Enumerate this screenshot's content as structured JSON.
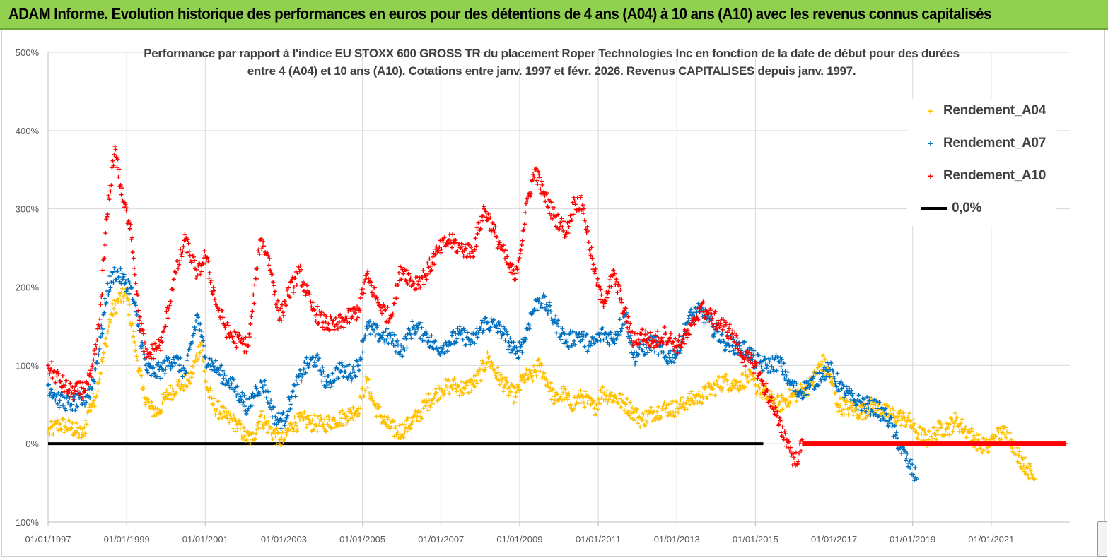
{
  "banner": {
    "title": "ADAM Informe. Evolution historique des performances en euros pour des détentions de 4 ans (A04) à 10 ans (A10) avec les revenus connus capitalisés"
  },
  "chart_data": {
    "type": "scatter",
    "title_line1": "Performance par rapport à l'indice EU STOXX 600 GROSS TR  du placement Roper Technologies Inc en fonction de la date de début pour des durées",
    "title_line2": "entre 4 (A04) et 10 ans (A10).  Cotations entre janv. 1997 et févr. 2026. Revenus  CAPITALISES depuis janv. 1997.",
    "xlabel": "",
    "ylabel": "",
    "x_range": [
      1997.0,
      2023.0
    ],
    "ylim": [
      -100,
      500
    ],
    "y_ticks": [
      -100,
      0,
      100,
      200,
      300,
      400,
      500
    ],
    "y_tick_labels": [
      "- 100%",
      "0%",
      "100%",
      "200%",
      "300%",
      "400%",
      "500%"
    ],
    "x_tick_values": [
      1997,
      1999,
      2001,
      2003,
      2005,
      2007,
      2009,
      2011,
      2013,
      2015,
      2017,
      2019,
      2021
    ],
    "x_tick_labels": [
      "01/01/1997",
      "01/01/1999",
      "01/01/2001",
      "01/01/2003",
      "01/01/2005",
      "01/01/2007",
      "01/01/2009",
      "01/01/2011",
      "01/01/2013",
      "01/01/2015",
      "01/01/2017",
      "01/01/2019",
      "01/01/2021"
    ],
    "grid": true,
    "legend_position": "top-right",
    "series": [
      {
        "name": "Rendement_A04",
        "color": "#ffc000",
        "marker": "+",
        "points": [
          [
            1997.0,
            15
          ],
          [
            1997.3,
            25
          ],
          [
            1997.6,
            20
          ],
          [
            1997.9,
            10
          ],
          [
            1998.0,
            40
          ],
          [
            1998.2,
            60
          ],
          [
            1998.4,
            110
          ],
          [
            1998.6,
            165
          ],
          [
            1998.8,
            185
          ],
          [
            1999.0,
            190
          ],
          [
            1999.2,
            130
          ],
          [
            1999.4,
            70
          ],
          [
            1999.6,
            45
          ],
          [
            1999.8,
            40
          ],
          [
            2000.0,
            60
          ],
          [
            2000.3,
            75
          ],
          [
            2000.6,
            80
          ],
          [
            2000.9,
            130
          ],
          [
            2001.0,
            80
          ],
          [
            2001.2,
            50
          ],
          [
            2001.5,
            35
          ],
          [
            2001.8,
            25
          ],
          [
            2002.0,
            10
          ],
          [
            2002.2,
            5
          ],
          [
            2002.4,
            35
          ],
          [
            2002.7,
            15
          ],
          [
            2002.9,
            5
          ],
          [
            2003.0,
            5
          ],
          [
            2003.2,
            25
          ],
          [
            2003.5,
            30
          ],
          [
            2003.8,
            25
          ],
          [
            2004.0,
            25
          ],
          [
            2004.3,
            30
          ],
          [
            2004.6,
            35
          ],
          [
            2004.9,
            45
          ],
          [
            2005.1,
            80
          ],
          [
            2005.3,
            50
          ],
          [
            2005.6,
            25
          ],
          [
            2005.9,
            15
          ],
          [
            2006.1,
            20
          ],
          [
            2006.4,
            35
          ],
          [
            2006.7,
            55
          ],
          [
            2007.0,
            70
          ],
          [
            2007.3,
            75
          ],
          [
            2007.6,
            70
          ],
          [
            2007.9,
            80
          ],
          [
            2008.2,
            110
          ],
          [
            2008.4,
            90
          ],
          [
            2008.7,
            70
          ],
          [
            2008.9,
            60
          ],
          [
            2009.1,
            85
          ],
          [
            2009.3,
            85
          ],
          [
            2009.5,
            100
          ],
          [
            2009.7,
            80
          ],
          [
            2009.9,
            55
          ],
          [
            2010.1,
            65
          ],
          [
            2010.3,
            50
          ],
          [
            2010.6,
            60
          ],
          [
            2010.9,
            45
          ],
          [
            2011.1,
            65
          ],
          [
            2011.4,
            60
          ],
          [
            2011.7,
            50
          ],
          [
            2011.9,
            40
          ],
          [
            2012.1,
            30
          ],
          [
            2012.4,
            40
          ],
          [
            2012.7,
            45
          ],
          [
            2013.0,
            45
          ],
          [
            2013.3,
            55
          ],
          [
            2013.6,
            60
          ],
          [
            2013.9,
            70
          ],
          [
            2014.2,
            80
          ],
          [
            2014.5,
            75
          ],
          [
            2014.8,
            85
          ],
          [
            2015.0,
            75
          ],
          [
            2015.3,
            60
          ],
          [
            2015.6,
            50
          ],
          [
            2015.9,
            60
          ],
          [
            2016.1,
            65
          ],
          [
            2016.4,
            75
          ],
          [
            2016.7,
            105
          ],
          [
            2016.9,
            85
          ],
          [
            2017.1,
            50
          ],
          [
            2017.4,
            45
          ],
          [
            2017.7,
            40
          ],
          [
            2018.0,
            50
          ],
          [
            2018.3,
            40
          ],
          [
            2018.6,
            35
          ],
          [
            2018.9,
            30
          ],
          [
            2019.1,
            15
          ],
          [
            2019.4,
            5
          ],
          [
            2019.7,
            20
          ],
          [
            2019.9,
            20
          ],
          [
            2020.1,
            30
          ],
          [
            2020.4,
            15
          ],
          [
            2020.7,
            0
          ],
          [
            2020.9,
            -5
          ],
          [
            2021.1,
            10
          ],
          [
            2021.4,
            15
          ],
          [
            2021.7,
            -15
          ],
          [
            2021.9,
            -30
          ],
          [
            2022.1,
            -45
          ]
        ]
      },
      {
        "name": "Rendement_A07",
        "color": "#0070c0",
        "marker": "+",
        "points": [
          [
            1997.0,
            75
          ],
          [
            1997.3,
            55
          ],
          [
            1997.6,
            50
          ],
          [
            1997.9,
            55
          ],
          [
            1998.1,
            70
          ],
          [
            1998.3,
            120
          ],
          [
            1998.5,
            195
          ],
          [
            1998.7,
            220
          ],
          [
            1998.9,
            210
          ],
          [
            1999.1,
            200
          ],
          [
            1999.3,
            150
          ],
          [
            1999.5,
            95
          ],
          [
            1999.7,
            90
          ],
          [
            1999.9,
            95
          ],
          [
            2000.2,
            110
          ],
          [
            2000.5,
            90
          ],
          [
            2000.8,
            165
          ],
          [
            2001.0,
            110
          ],
          [
            2001.3,
            95
          ],
          [
            2001.6,
            80
          ],
          [
            2001.9,
            60
          ],
          [
            2002.1,
            45
          ],
          [
            2002.3,
            70
          ],
          [
            2002.5,
            75
          ],
          [
            2002.8,
            30
          ],
          [
            2003.0,
            30
          ],
          [
            2003.2,
            60
          ],
          [
            2003.5,
            95
          ],
          [
            2003.8,
            110
          ],
          [
            2004.1,
            75
          ],
          [
            2004.4,
            95
          ],
          [
            2004.7,
            90
          ],
          [
            2004.9,
            100
          ],
          [
            2005.1,
            150
          ],
          [
            2005.4,
            140
          ],
          [
            2005.7,
            135
          ],
          [
            2006.0,
            120
          ],
          [
            2006.3,
            150
          ],
          [
            2006.6,
            140
          ],
          [
            2006.9,
            120
          ],
          [
            2007.2,
            130
          ],
          [
            2007.5,
            140
          ],
          [
            2007.8,
            130
          ],
          [
            2008.1,
            155
          ],
          [
            2008.4,
            150
          ],
          [
            2008.6,
            140
          ],
          [
            2008.9,
            115
          ],
          [
            2009.1,
            130
          ],
          [
            2009.3,
            165
          ],
          [
            2009.5,
            185
          ],
          [
            2009.7,
            175
          ],
          [
            2009.9,
            155
          ],
          [
            2010.2,
            130
          ],
          [
            2010.5,
            140
          ],
          [
            2010.8,
            125
          ],
          [
            2011.1,
            140
          ],
          [
            2011.4,
            135
          ],
          [
            2011.7,
            165
          ],
          [
            2011.9,
            110
          ],
          [
            2012.1,
            120
          ],
          [
            2012.4,
            130
          ],
          [
            2012.7,
            110
          ],
          [
            2013.0,
            115
          ],
          [
            2013.3,
            160
          ],
          [
            2013.6,
            170
          ],
          [
            2013.9,
            150
          ],
          [
            2014.2,
            130
          ],
          [
            2014.5,
            125
          ],
          [
            2014.8,
            120
          ],
          [
            2015.0,
            105
          ],
          [
            2015.3,
            100
          ],
          [
            2015.6,
            105
          ],
          [
            2015.9,
            75
          ],
          [
            2016.1,
            65
          ],
          [
            2016.4,
            75
          ],
          [
            2016.7,
            90
          ],
          [
            2016.9,
            95
          ],
          [
            2017.2,
            70
          ],
          [
            2017.5,
            55
          ],
          [
            2017.8,
            50
          ],
          [
            2018.1,
            45
          ],
          [
            2018.4,
            30
          ],
          [
            2018.7,
            -5
          ],
          [
            2018.9,
            -25
          ],
          [
            2019.1,
            -45
          ]
        ]
      },
      {
        "name": "Rendement_A10",
        "color": "#ff0000",
        "marker": "+",
        "points": [
          [
            1997.0,
            100
          ],
          [
            1997.3,
            80
          ],
          [
            1997.6,
            65
          ],
          [
            1997.9,
            70
          ],
          [
            1998.1,
            85
          ],
          [
            1998.3,
            150
          ],
          [
            1998.5,
            290
          ],
          [
            1998.7,
            380
          ],
          [
            1998.9,
            310
          ],
          [
            1999.1,
            280
          ],
          [
            1999.3,
            170
          ],
          [
            1999.5,
            110
          ],
          [
            1999.7,
            120
          ],
          [
            1999.9,
            130
          ],
          [
            2000.2,
            210
          ],
          [
            2000.5,
            260
          ],
          [
            2000.8,
            215
          ],
          [
            2001.0,
            240
          ],
          [
            2001.3,
            175
          ],
          [
            2001.6,
            140
          ],
          [
            2001.9,
            130
          ],
          [
            2002.1,
            125
          ],
          [
            2002.4,
            260
          ],
          [
            2002.6,
            240
          ],
          [
            2002.9,
            160
          ],
          [
            2003.1,
            190
          ],
          [
            2003.4,
            220
          ],
          [
            2003.7,
            175
          ],
          [
            2004.0,
            155
          ],
          [
            2004.3,
            150
          ],
          [
            2004.6,
            160
          ],
          [
            2004.9,
            170
          ],
          [
            2005.1,
            215
          ],
          [
            2005.4,
            180
          ],
          [
            2005.7,
            160
          ],
          [
            2006.0,
            225
          ],
          [
            2006.3,
            205
          ],
          [
            2006.6,
            215
          ],
          [
            2006.9,
            245
          ],
          [
            2007.2,
            260
          ],
          [
            2007.5,
            250
          ],
          [
            2007.8,
            245
          ],
          [
            2008.1,
            300
          ],
          [
            2008.4,
            265
          ],
          [
            2008.7,
            230
          ],
          [
            2008.9,
            210
          ],
          [
            2009.2,
            310
          ],
          [
            2009.4,
            350
          ],
          [
            2009.6,
            320
          ],
          [
            2009.9,
            290
          ],
          [
            2010.2,
            270
          ],
          [
            2010.4,
            310
          ],
          [
            2010.6,
            305
          ],
          [
            2010.9,
            220
          ],
          [
            2011.1,
            180
          ],
          [
            2011.4,
            215
          ],
          [
            2011.6,
            180
          ],
          [
            2011.9,
            130
          ],
          [
            2012.1,
            140
          ],
          [
            2012.4,
            130
          ],
          [
            2012.7,
            140
          ],
          [
            2013.0,
            125
          ],
          [
            2013.3,
            140
          ],
          [
            2013.6,
            175
          ],
          [
            2013.9,
            160
          ],
          [
            2014.2,
            150
          ],
          [
            2014.4,
            140
          ],
          [
            2014.7,
            110
          ],
          [
            2015.0,
            100
          ],
          [
            2015.2,
            75
          ],
          [
            2015.4,
            55
          ],
          [
            2015.6,
            25
          ],
          [
            2015.8,
            5
          ],
          [
            2016.0,
            -25
          ],
          [
            2016.2,
            0
          ],
          [
            2017.0,
            0
          ],
          [
            2018.0,
            0
          ],
          [
            2019.0,
            0
          ],
          [
            2020.0,
            0
          ],
          [
            2021.0,
            0
          ],
          [
            2022.0,
            0
          ],
          [
            2022.9,
            0
          ]
        ]
      },
      {
        "name": "0,0%",
        "color": "#000000",
        "marker": "line",
        "points": [
          [
            1997.0,
            0
          ],
          [
            2015.2,
            0
          ]
        ]
      }
    ]
  }
}
